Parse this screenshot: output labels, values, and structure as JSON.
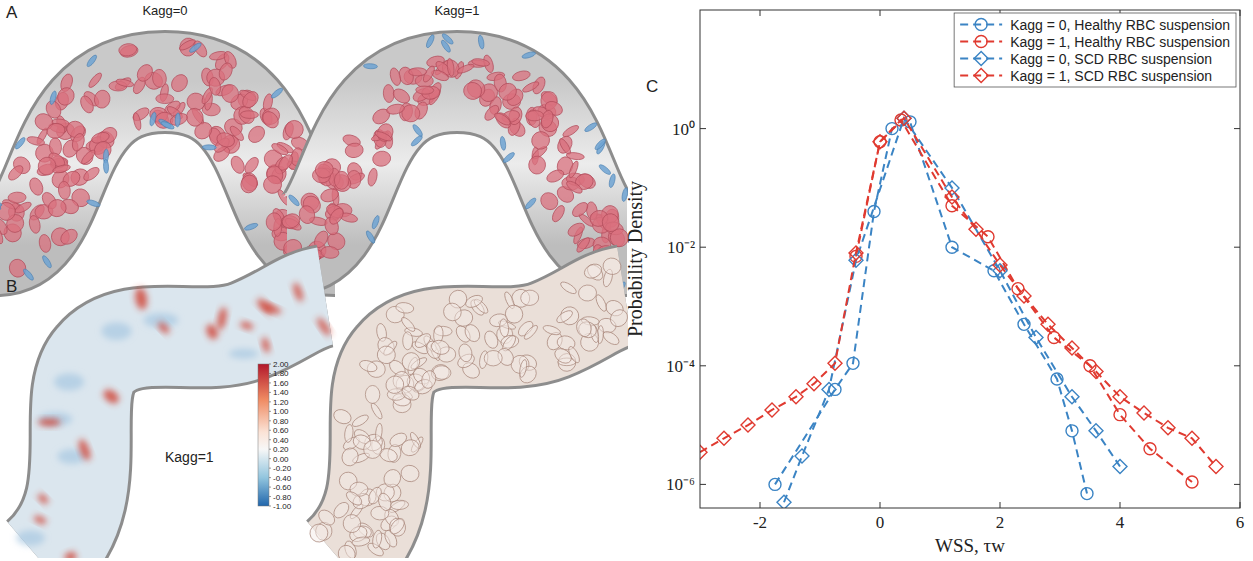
{
  "figure": {
    "panel_labels": [
      "A",
      "B",
      "C"
    ],
    "panel_a_titles": [
      "Kagg=0",
      "Kagg=1"
    ],
    "panel_b_title": "Kagg=1",
    "colorbar": {
      "range": [
        -1,
        2
      ],
      "ticks": [
        {
          "value": 2,
          "label": "2.00"
        },
        {
          "value": 1.8,
          "label": "1.80"
        },
        {
          "value": 1.6,
          "label": "1.60"
        },
        {
          "value": 1.4,
          "label": "1.40"
        },
        {
          "value": 1.2,
          "label": "1.20"
        },
        {
          "value": 1,
          "label": "1.00"
        },
        {
          "value": 0.8,
          "label": "0.80"
        },
        {
          "value": 0.6,
          "label": "0.60"
        },
        {
          "value": 0.4,
          "label": "0.40"
        },
        {
          "value": 0.2,
          "label": "0.20"
        },
        {
          "value": 0,
          "label": "0.00"
        },
        {
          "value": -0.2,
          "label": "-0.20"
        },
        {
          "value": -0.4,
          "label": "-0.40"
        },
        {
          "value": -0.6,
          "label": "-0.60"
        },
        {
          "value": -0.8,
          "label": "-0.80"
        },
        {
          "value": -1,
          "label": "-1.00"
        }
      ]
    }
  },
  "chart_data": {
    "type": "line",
    "x_label": "WSS, τw",
    "y_label": "Probability Density",
    "xlim": [
      -3,
      6
    ],
    "xticks": [
      -2,
      0,
      2,
      4,
      6
    ],
    "ylim": [
      4e-07,
      100
    ],
    "yticks": [
      {
        "value": 1e-06,
        "label": "10⁻⁶"
      },
      {
        "value": 0.0001,
        "label": "10⁻⁴"
      },
      {
        "value": 0.01,
        "label": "10⁻²"
      },
      {
        "value": 1,
        "label": "10⁰"
      }
    ],
    "log": "y",
    "grid": false,
    "legend": "upper right",
    "series": [
      {
        "name": "Kagg = 0, Healthy RBC suspension",
        "color": "#3b84c4",
        "marker": "circle",
        "line_style": "dashed",
        "x": [
          -1.75,
          -0.75,
          -0.45,
          -0.1,
          0.2,
          0.5,
          1.2,
          1.9,
          2.4,
          2.95,
          3.2,
          3.45
        ],
        "values": [
          1e-06,
          4e-05,
          0.00011,
          0.04,
          1.0,
          1.3,
          0.01,
          0.004,
          0.0005,
          6e-05,
          8e-06,
          7e-07
        ]
      },
      {
        "name": "Kagg = 1, Healthy RBC suspension",
        "color": "#e03a30",
        "marker": "circle",
        "line_style": "dashed",
        "x": [
          -0.4,
          0,
          0.35,
          1.2,
          1.8,
          2.3,
          2.9,
          3.5,
          4.0,
          4.5,
          5.2
        ],
        "values": [
          0.007,
          0.6,
          1.4,
          0.05,
          0.015,
          0.002,
          0.0003,
          0.0001,
          1.5e-05,
          4e-06,
          1.1e-06
        ]
      },
      {
        "name": "Kagg = 0, SCD RBC suspension",
        "color": "#3b84c4",
        "marker": "diamond",
        "line_style": "dashed",
        "x": [
          -1.6,
          -1.3,
          -0.85,
          -0.4,
          0.4,
          1.2,
          2.0,
          2.6,
          3.2,
          3.6,
          4.0
        ],
        "values": [
          5e-07,
          3e-06,
          4e-05,
          0.006,
          1.5,
          0.1,
          0.004,
          0.0003,
          3e-05,
          8e-06,
          2e-06
        ]
      },
      {
        "name": "Kagg = 1, SCD RBC suspension",
        "color": "#e03a30",
        "marker": "diamond",
        "line_style": "dashed",
        "x": [
          -3,
          -2.6,
          -2.2,
          -1.8,
          -1.4,
          -1.1,
          -0.75,
          -0.4,
          0,
          0.4,
          1.2,
          1.6,
          2.0,
          2.4,
          2.8,
          3.2,
          3.6,
          4.0,
          4.4,
          4.8,
          5.2,
          5.6
        ],
        "values": [
          3.5e-06,
          6e-06,
          1e-05,
          1.8e-05,
          3e-05,
          5e-05,
          0.00011,
          0.008,
          0.6,
          1.5,
          0.07,
          0.02,
          0.005,
          0.0015,
          0.0005,
          0.0002,
          8e-05,
          3e-05,
          1.6e-05,
          9e-06,
          6e-06,
          2e-06
        ]
      }
    ]
  }
}
